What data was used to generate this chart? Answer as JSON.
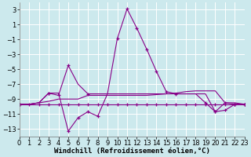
{
  "bg_color": "#cce9ed",
  "grid_color": "#ffffff",
  "line_color": "#880088",
  "xlabel": "Windchill (Refroidissement éolien,°C)",
  "xlabel_fontsize": 6.5,
  "tick_fontsize": 6,
  "ylim": [
    -14,
    4
  ],
  "xlim": [
    0,
    23
  ],
  "yticks": [
    3,
    1,
    -1,
    -3,
    -5,
    -7,
    -9,
    -11,
    -13
  ],
  "xticks": [
    0,
    1,
    2,
    3,
    4,
    5,
    6,
    7,
    8,
    9,
    10,
    11,
    12,
    13,
    14,
    15,
    16,
    17,
    18,
    19,
    20,
    21,
    22,
    23
  ],
  "s1x": [
    0,
    1,
    2,
    3,
    4,
    5,
    6,
    7,
    8,
    9,
    10,
    11,
    12,
    13,
    14,
    15,
    16,
    17,
    18,
    19,
    20,
    21,
    22,
    23
  ],
  "s1y": [
    -9.7,
    -9.7,
    -9.7,
    -9.7,
    -9.7,
    -9.7,
    -9.7,
    -9.7,
    -9.7,
    -9.7,
    -9.7,
    -9.7,
    -9.7,
    -9.7,
    -9.7,
    -9.7,
    -9.7,
    -9.7,
    -9.7,
    -9.7,
    -9.7,
    -9.7,
    -9.7,
    -9.7
  ],
  "s2x": [
    0,
    1,
    2,
    3,
    4,
    5,
    6,
    7,
    8,
    9,
    10,
    11,
    12,
    13,
    14,
    15,
    16,
    17,
    18,
    19,
    20,
    21,
    22,
    23
  ],
  "s2y": [
    -9.7,
    -9.7,
    -9.5,
    -9.3,
    -9.0,
    -9.0,
    -9.0,
    -8.5,
    -8.5,
    -8.5,
    -8.5,
    -8.5,
    -8.5,
    -8.5,
    -8.4,
    -8.3,
    -8.2,
    -8.0,
    -7.9,
    -7.9,
    -7.9,
    -9.5,
    -9.5,
    -9.7
  ],
  "s3x": [
    0,
    1,
    2,
    3,
    4,
    5,
    6,
    7,
    8,
    9,
    10,
    11,
    12,
    13,
    14,
    15,
    16,
    17,
    18,
    19,
    20,
    21,
    22,
    23
  ],
  "s3y": [
    -9.7,
    -9.7,
    -9.5,
    -8.2,
    -8.2,
    -13.3,
    -11.5,
    -10.7,
    -11.3,
    -8.3,
    -8.3,
    -8.3,
    -8.3,
    -8.3,
    -8.3,
    -8.3,
    -8.3,
    -8.3,
    -8.3,
    -8.3,
    -10.7,
    -10.5,
    -9.7,
    -9.7
  ],
  "s4x": [
    0,
    1,
    2,
    3,
    4,
    5,
    6,
    7,
    8,
    9,
    10,
    11,
    12,
    13,
    14,
    15,
    16,
    17,
    18,
    19,
    20,
    21,
    22,
    23
  ],
  "s4y": [
    -9.7,
    -9.7,
    -9.5,
    -8.2,
    -8.5,
    -4.5,
    -7.0,
    -8.3,
    -8.3,
    -8.3,
    -0.9,
    3.1,
    0.5,
    -2.3,
    -5.3,
    -8.0,
    -8.3,
    -8.3,
    -8.3,
    -9.5,
    -10.7,
    -9.5,
    -9.7,
    -9.7
  ],
  "s3_markers": [
    0,
    3,
    5,
    6,
    7,
    8,
    20,
    21,
    22,
    23
  ],
  "s4_markers": [
    0,
    3,
    4,
    5,
    7,
    10,
    11,
    12,
    13,
    14,
    15,
    16,
    19,
    20,
    21,
    22,
    23
  ]
}
